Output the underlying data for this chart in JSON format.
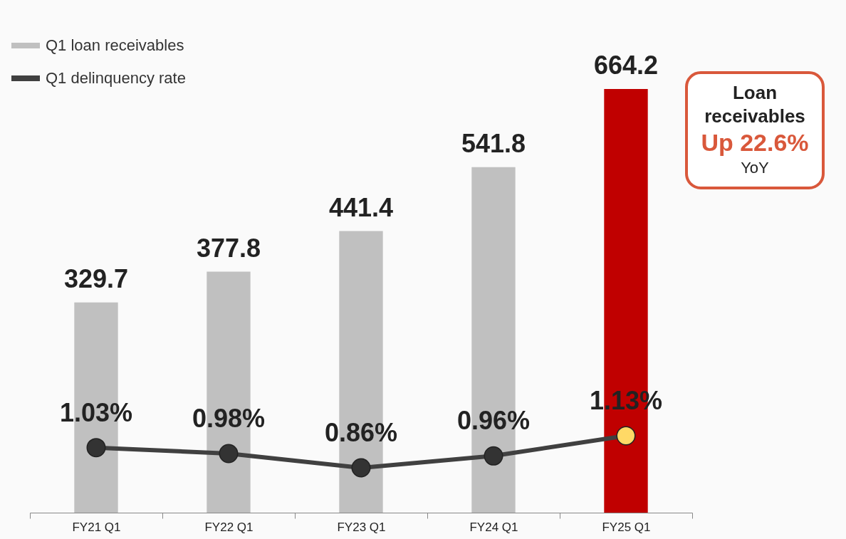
{
  "chart_data": {
    "type": "bar",
    "categories": [
      "FY21 Q1",
      "FY22 Q1",
      "FY23 Q1",
      "FY24 Q1",
      "FY25 Q1"
    ],
    "series": [
      {
        "name": "Q1 loan receivables",
        "color": "#c0c0c0",
        "colors": [
          "#c0c0c0",
          "#c0c0c0",
          "#c0c0c0",
          "#c0c0c0",
          "#c00000"
        ],
        "values": [
          329.7,
          377.8,
          441.4,
          541.8,
          664.2
        ]
      },
      {
        "name": "Q1 delinquency rate",
        "type": "line",
        "axis": "y2",
        "color": "#404040",
        "colors": [
          "#333333",
          "#333333",
          "#333333",
          "#333333",
          "#ffd966"
        ],
        "values": [
          1.03,
          0.98,
          0.86,
          0.96,
          1.13
        ],
        "value_labels": [
          "1.03%",
          "0.98%",
          "0.86%",
          "0.96%",
          "1.13%"
        ]
      }
    ],
    "data_labels": true,
    "marker": "circle",
    "legend": "top left",
    "annotations": [
      "Loan receivables",
      "Up 22.6%",
      "YoY"
    ]
  }
}
